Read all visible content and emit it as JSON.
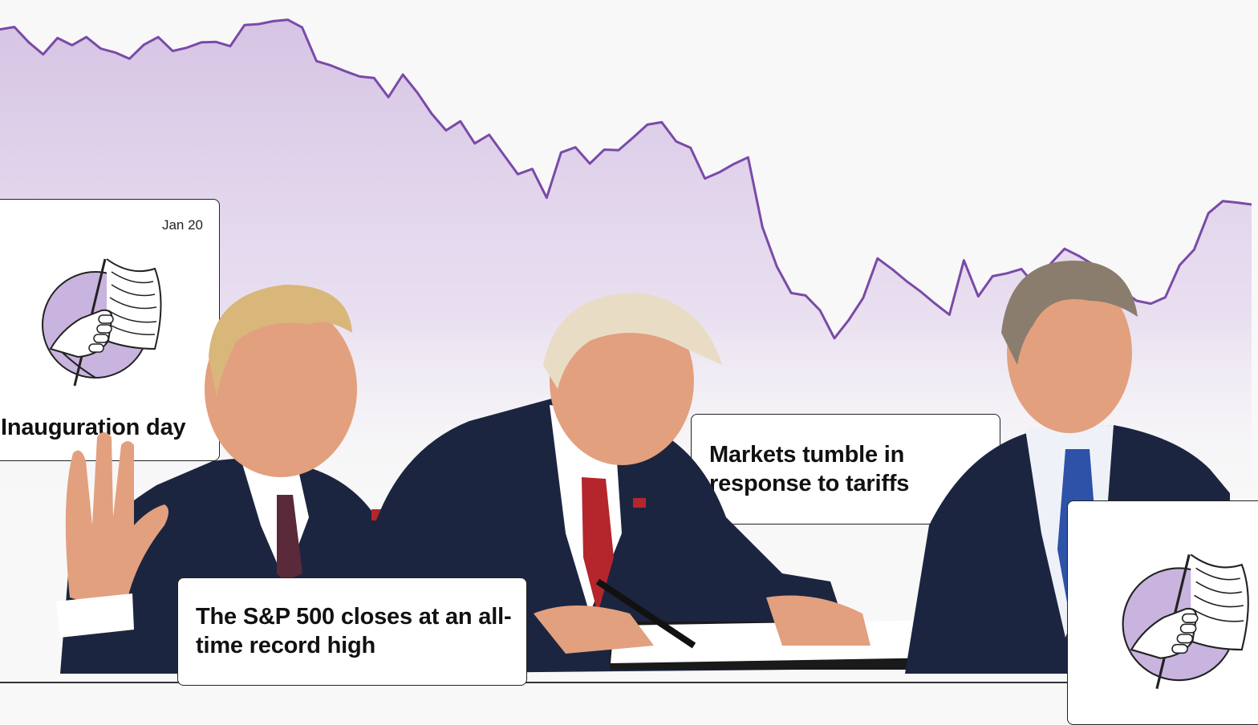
{
  "chart_data": {
    "type": "area",
    "title": "",
    "xlabel": "",
    "ylabel": "",
    "line_color": "#7a4aa8",
    "fill_color_top": "#d6c4e4",
    "ylim": [
      0,
      100
    ],
    "x": [
      0,
      1,
      2,
      3,
      4,
      5,
      6,
      7,
      8,
      9,
      10,
      11,
      12,
      13,
      14,
      15,
      16,
      17,
      18,
      19,
      20,
      21,
      22,
      23,
      24,
      25,
      26,
      27,
      28,
      29,
      30,
      31,
      32,
      33,
      34,
      35,
      36,
      37,
      38,
      39,
      40,
      41,
      42,
      43,
      44,
      45,
      46,
      47,
      48,
      49,
      50,
      51,
      52,
      53,
      54,
      55,
      56,
      57,
      58,
      59,
      60,
      61,
      62,
      63,
      64,
      65,
      66,
      67,
      68,
      69,
      70,
      71,
      72,
      73,
      74,
      75,
      76,
      77,
      78,
      79,
      80,
      81,
      82,
      83,
      84,
      85,
      86,
      87
    ],
    "values": [
      93.9,
      94.4,
      91.2,
      88.7,
      92.1,
      90.6,
      92.3,
      89.9,
      89.1,
      87.8,
      90.7,
      92.3,
      89.4,
      90.1,
      91.2,
      91.3,
      90.4,
      94.8,
      95.0,
      95.6,
      95.9,
      94.3,
      87.3,
      86.4,
      85.2,
      84.1,
      83.8,
      79.8,
      84.5,
      80.8,
      76.4,
      72.9,
      74.8,
      70.2,
      72.0,
      67.9,
      63.8,
      64.9,
      58.9,
      68.3,
      69.4,
      66.0,
      68.9,
      68.8,
      71.4,
      74.1,
      74.6,
      70.6,
      69.3,
      62.9,
      64.2,
      65.9,
      67.3,
      52.8,
      44.6,
      39.1,
      38.6,
      35.5,
      29.7,
      33.5,
      38.1,
      46.3,
      44.1,
      41.6,
      39.4,
      36.9,
      34.6,
      45.9,
      38.4,
      42.6,
      43.2,
      44.1,
      40.5,
      45.1,
      48.3,
      46.8,
      45.0,
      42.5,
      39.7,
      37.5,
      36.9,
      38.2,
      44.9,
      48.1,
      55.7,
      58.2,
      57.9,
      57.5
    ],
    "annotations": [
      {
        "date": "Jan 20",
        "label": "Inauguration day"
      },
      {
        "label": "The S&P 500 closes at an all-time record high"
      },
      {
        "label": "Markets tumble in response to tariffs"
      }
    ]
  },
  "cards": {
    "inauguration": {
      "date": "Jan 20",
      "title": "Inauguration day"
    },
    "record_high": {
      "title": "The S&P 500 closes at an all-time record high"
    },
    "tariffs": {
      "title": "Markets tumble in response to tariffs"
    }
  },
  "photos": [
    {
      "name": "trump-oath-photo"
    },
    {
      "name": "trump-signing-photo"
    },
    {
      "name": "bessent-photo"
    }
  ],
  "icons": [
    "hand-holding-flag-icon"
  ],
  "colors": {
    "accent": "#7a4aa8",
    "icon_fill": "#c8b4de",
    "suit": "#1c2540",
    "skin": "#e2a07f",
    "tie_red": "#b5252c",
    "tie_blue": "#2d52a8"
  }
}
